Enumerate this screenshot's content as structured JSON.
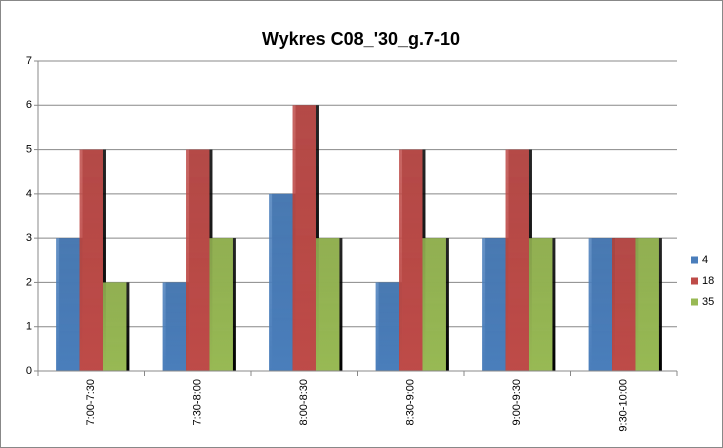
{
  "chart_data": {
    "type": "bar",
    "title": "Wykres C08_'30_g.7-10",
    "categories": [
      "7:00-7:30",
      "7:30-8:00",
      "8:00-8:30",
      "8:30-9:00",
      "9:00-9:30",
      "9:30-10:00"
    ],
    "series": [
      {
        "name": "4",
        "color": "#4a7ebb",
        "values": [
          3,
          2,
          4,
          2,
          3,
          3
        ]
      },
      {
        "name": "18",
        "color": "#be4b48",
        "values": [
          5,
          5,
          6,
          5,
          5,
          3
        ]
      },
      {
        "name": "35",
        "color": "#98b954",
        "values": [
          2,
          3,
          3,
          3,
          3,
          3
        ]
      }
    ],
    "ylim": [
      0,
      7
    ],
    "yticks": [
      0,
      1,
      2,
      3,
      4,
      5,
      6,
      7
    ],
    "grid": true,
    "legend": "right"
  }
}
